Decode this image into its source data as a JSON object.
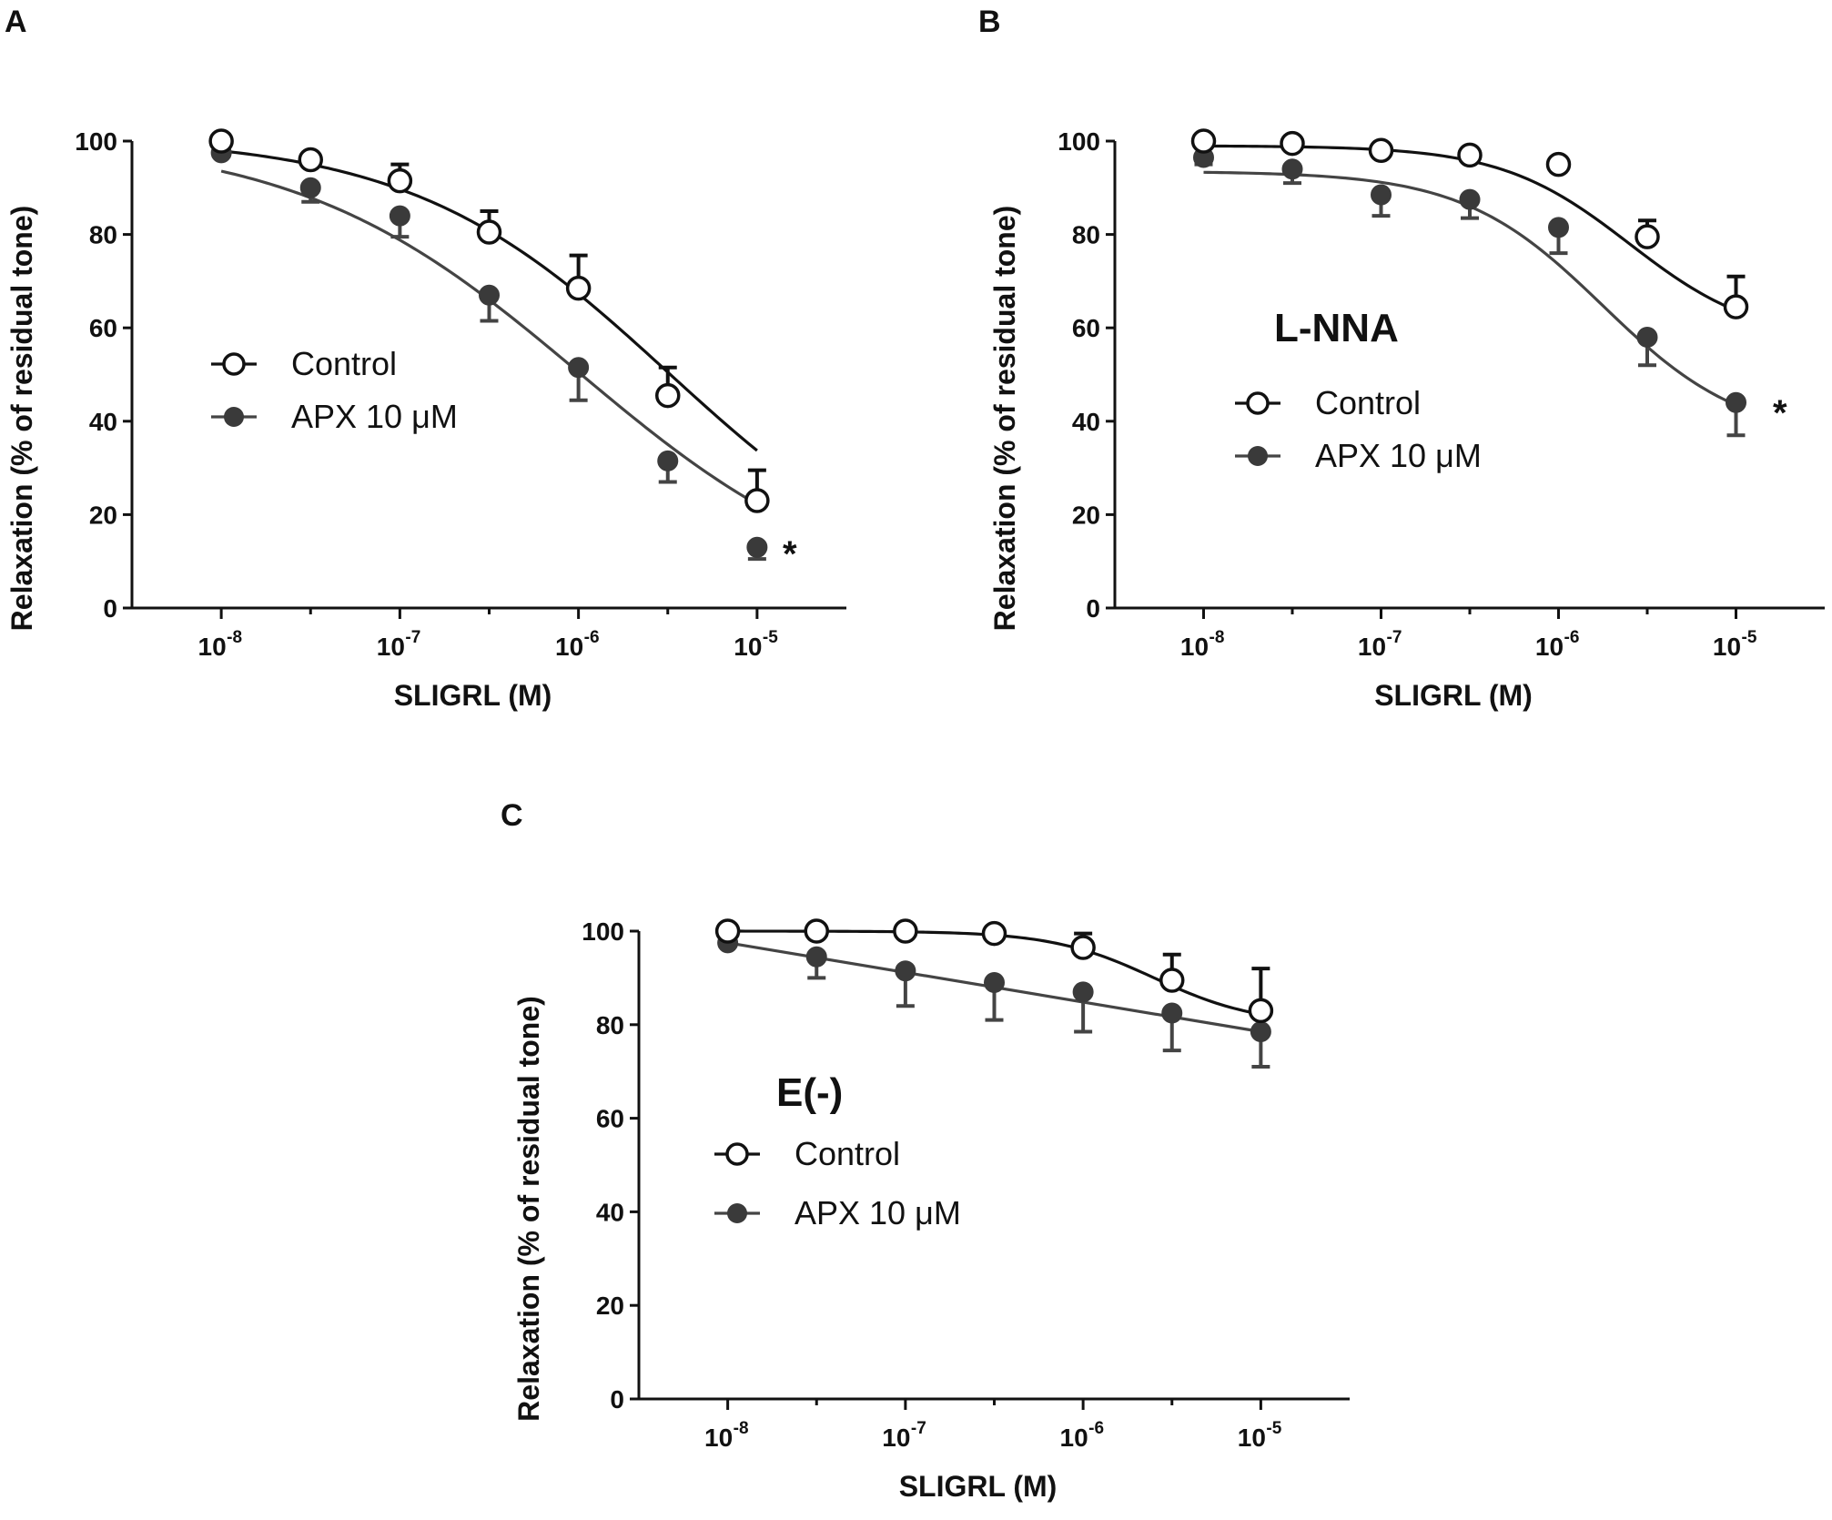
{
  "chart_data": [
    {
      "panel": "A",
      "type": "line",
      "title": "",
      "annotation": "",
      "significance": "*",
      "xlabel": "SLIGRL (M)",
      "ylabel": "Relaxation (% of residual tone)",
      "xscale": "log",
      "x_tick_labels": [
        {
          "base": "10",
          "exp": "-8"
        },
        {
          "base": "10",
          "exp": "-7"
        },
        {
          "base": "10",
          "exp": "-6"
        },
        {
          "base": "10",
          "exp": "-5"
        }
      ],
      "y_ticks": [
        0,
        20,
        40,
        60,
        80,
        100
      ],
      "ylim": [
        0,
        100
      ],
      "xlim_log10": [
        -8.5,
        -4.5
      ],
      "legend": {
        "placement": "middle-left",
        "entries": [
          "Control",
          "APX 10 μM"
        ]
      },
      "x": [
        -8,
        -7.5,
        -7,
        -6.5,
        -6,
        -5.5,
        -5
      ],
      "series": [
        {
          "name": "Control",
          "marker": "open-circle",
          "values": [
            100,
            96,
            91.5,
            80.5,
            68.5,
            45.5,
            23
          ],
          "error": [
            0,
            0,
            3.5,
            4.5,
            7,
            6,
            6.5
          ]
        },
        {
          "name": "APX 10 μM",
          "marker": "filled-circle",
          "values": [
            97.5,
            90,
            84,
            67,
            51.5,
            31.5,
            13
          ],
          "error": [
            0,
            3,
            4.5,
            5.5,
            7,
            4.5,
            2.5
          ]
        }
      ],
      "fits": [
        {
          "name": "Control",
          "top": 101,
          "bottom": 0,
          "logec50": -5.5,
          "hill": 0.6
        },
        {
          "name": "APX 10 μM",
          "top": 101,
          "bottom": 0,
          "logec50": -6.0,
          "hill": 0.55
        }
      ]
    },
    {
      "panel": "B",
      "type": "line",
      "title": "",
      "annotation": "L-NNA",
      "significance": "*",
      "xlabel": "SLIGRL (M)",
      "ylabel": "Relaxation (% of residual tone)",
      "xscale": "log",
      "x_tick_labels": [
        {
          "base": "10",
          "exp": "-8"
        },
        {
          "base": "10",
          "exp": "-7"
        },
        {
          "base": "10",
          "exp": "-6"
        },
        {
          "base": "10",
          "exp": "-5"
        }
      ],
      "y_ticks": [
        0,
        20,
        40,
        60,
        80,
        100
      ],
      "ylim": [
        0,
        100
      ],
      "xlim_log10": [
        -8.5,
        -4.5
      ],
      "legend": {
        "placement": "middle-left",
        "entries": [
          "Control",
          "APX 10 μM"
        ]
      },
      "x": [
        -8,
        -7.5,
        -7,
        -6.5,
        -6,
        -5.5,
        -5
      ],
      "series": [
        {
          "name": "Control",
          "marker": "open-circle",
          "values": [
            100,
            99.5,
            98,
            97,
            95,
            79.5,
            64.5
          ],
          "error": [
            0,
            0,
            0,
            0,
            0,
            3.5,
            6.5
          ]
        },
        {
          "name": "APX 10 μM",
          "marker": "filled-circle",
          "values": [
            96.5,
            94,
            88.5,
            87.5,
            81.5,
            58,
            44
          ],
          "error": [
            1.5,
            3,
            4.5,
            4,
            5.5,
            6,
            7
          ]
        }
      ],
      "fits": [
        {
          "name": "Control",
          "top": 99,
          "bottom": 57,
          "logec50": -5.6,
          "hill": 1.2
        },
        {
          "name": "APX 10 μM",
          "top": 93.5,
          "bottom": 36,
          "logec50": -5.75,
          "hill": 1.1
        }
      ]
    },
    {
      "panel": "C",
      "type": "line",
      "title": "",
      "annotation": "E(-)",
      "significance": "",
      "xlabel": "SLIGRL (M)",
      "ylabel": "Relaxation (% of residual tone)",
      "xscale": "log",
      "x_tick_labels": [
        {
          "base": "10",
          "exp": "-8"
        },
        {
          "base": "10",
          "exp": "-7"
        },
        {
          "base": "10",
          "exp": "-6"
        },
        {
          "base": "10",
          "exp": "-5"
        }
      ],
      "y_ticks": [
        0,
        20,
        40,
        60,
        80,
        100
      ],
      "ylim": [
        0,
        100
      ],
      "xlim_log10": [
        -8.5,
        -4.5
      ],
      "legend": {
        "placement": "middle-left",
        "entries": [
          "Control",
          "APX 10 μM"
        ]
      },
      "x": [
        -8,
        -7.5,
        -7,
        -6.5,
        -6,
        -5.5,
        -5
      ],
      "series": [
        {
          "name": "Control",
          "marker": "open-circle",
          "values": [
            100,
            100,
            100,
            99.5,
            96.5,
            89.5,
            83
          ],
          "error": [
            0,
            0,
            0,
            0,
            3,
            5.5,
            9
          ]
        },
        {
          "name": "APX 10 μM",
          "marker": "filled-circle",
          "values": [
            97.5,
            94.5,
            91.5,
            89,
            87,
            82.5,
            78.5
          ],
          "error": [
            0,
            4.5,
            7.5,
            8,
            8.5,
            8,
            7.5
          ]
        }
      ],
      "fits": [
        {
          "name": "Control",
          "top": 100,
          "bottom": 80,
          "logec50": -5.6,
          "hill": 1.5
        },
        {
          "name": "APX 10 μM",
          "linear": true
        }
      ]
    }
  ]
}
